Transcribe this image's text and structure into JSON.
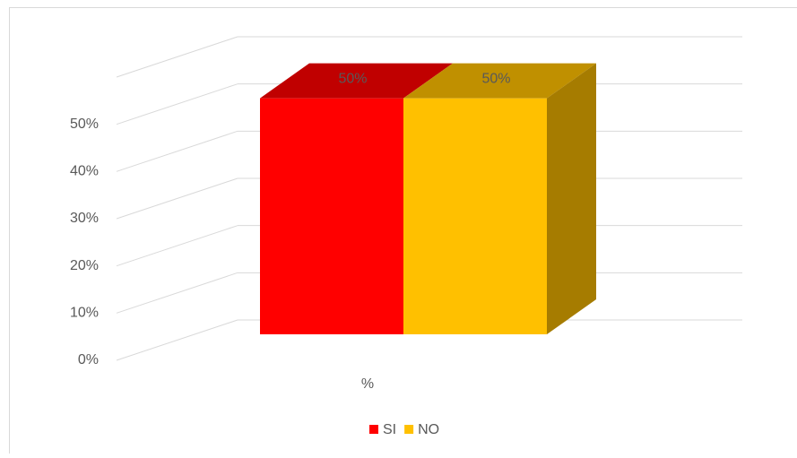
{
  "chart_data": {
    "type": "bar3d",
    "categories": [
      "%"
    ],
    "series": [
      {
        "name": "SI",
        "color": "#ff0000",
        "values": [
          50
        ],
        "value_labels": [
          "50%"
        ]
      },
      {
        "name": "NO",
        "color": "#ffc000",
        "values": [
          50
        ],
        "value_labels": [
          "50%"
        ]
      }
    ],
    "ylim": [
      0,
      60
    ],
    "yticks": [
      {
        "value": 0,
        "label": "0%"
      },
      {
        "value": 10,
        "label": "10%"
      },
      {
        "value": 20,
        "label": "20%"
      },
      {
        "value": 30,
        "label": "30%"
      },
      {
        "value": 40,
        "label": "40%"
      },
      {
        "value": 50,
        "label": "50%"
      }
    ],
    "grid": true,
    "legend": "bottom"
  }
}
